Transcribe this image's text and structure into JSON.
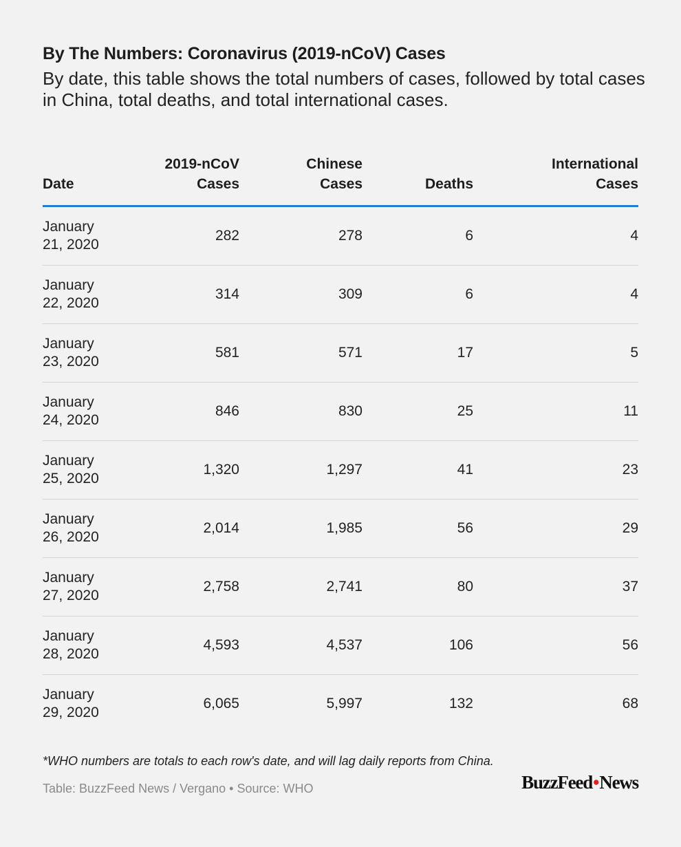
{
  "title": "By The Numbers: Coronavirus (2019-nCoV) Cases",
  "subtitle": "By date, this table shows the total numbers of cases, followed by total cases in China, total deaths, and total international cases.",
  "chart_data": {
    "type": "table",
    "columns": [
      "Date",
      "2019-nCoV\nCases",
      "Chinese\nCases",
      "Deaths",
      "International\nCases"
    ],
    "rows": [
      {
        "date1": "January",
        "date2": "21, 2020",
        "total": "282",
        "china": "278",
        "deaths": "6",
        "intl": "4"
      },
      {
        "date1": "January",
        "date2": "22, 2020",
        "total": "314",
        "china": "309",
        "deaths": "6",
        "intl": "4"
      },
      {
        "date1": "January",
        "date2": "23, 2020",
        "total": "581",
        "china": "571",
        "deaths": "17",
        "intl": "5"
      },
      {
        "date1": "January",
        "date2": "24, 2020",
        "total": "846",
        "china": "830",
        "deaths": "25",
        "intl": "11"
      },
      {
        "date1": "January",
        "date2": "25, 2020",
        "total": "1,320",
        "china": "1,297",
        "deaths": "41",
        "intl": "23"
      },
      {
        "date1": "January",
        "date2": "26, 2020",
        "total": "2,014",
        "china": "1,985",
        "deaths": "56",
        "intl": "29"
      },
      {
        "date1": "January",
        "date2": "27, 2020",
        "total": "2,758",
        "china": "2,741",
        "deaths": "80",
        "intl": "37"
      },
      {
        "date1": "January",
        "date2": "28, 2020",
        "total": "4,593",
        "china": "4,537",
        "deaths": "106",
        "intl": "56"
      },
      {
        "date1": "January",
        "date2": "29, 2020",
        "total": "6,065",
        "china": "5,997",
        "deaths": "132",
        "intl": "68"
      }
    ]
  },
  "footnote": "*WHO numbers are totals to each row's date, and will lag daily reports from China.",
  "credit": "Table: BuzzFeed News / Vergano • Source: WHO",
  "logo": {
    "left": "BuzzFeed",
    "right": "News"
  },
  "colors": {
    "accent_rule": "#1b7fdd",
    "logo_dot": "#e32020",
    "background": "#f2f2f2"
  }
}
